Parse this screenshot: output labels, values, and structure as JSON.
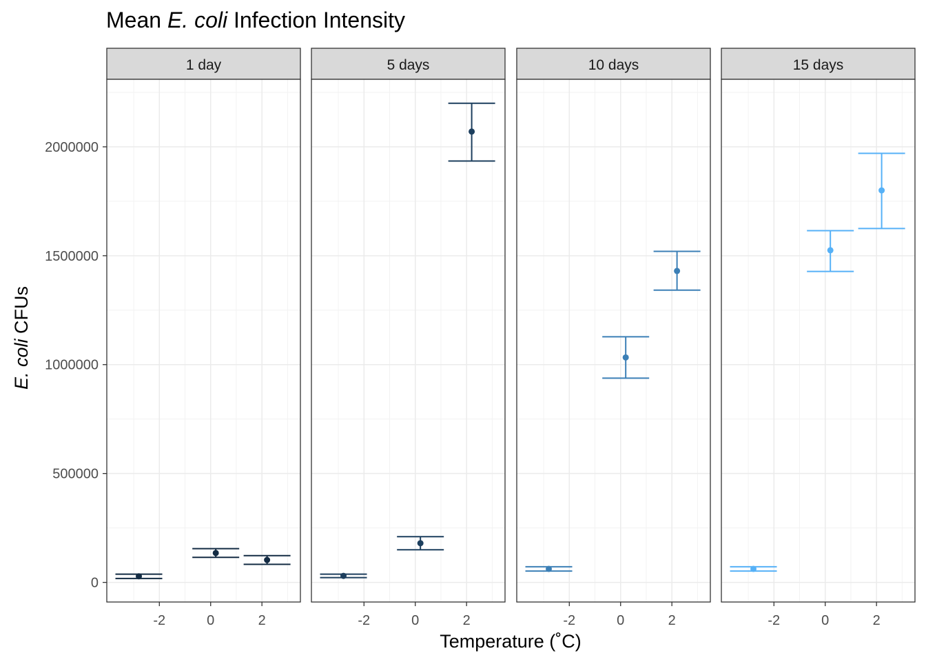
{
  "chart_data": {
    "type": "errorbar",
    "title": {
      "prefix": "Mean ",
      "italic": "E. coli",
      "suffix": " Infection Intensity"
    },
    "xlabel": "Temperature (˚C)",
    "ylabel": {
      "italic": "E. coli",
      "suffix": " CFUs"
    },
    "x_ticks": [
      -2,
      0,
      2
    ],
    "x_tick_labels": [
      "-2",
      "0",
      "2"
    ],
    "y_ticks": [
      0,
      500000,
      1000000,
      1500000,
      2000000
    ],
    "y_tick_labels": [
      "0",
      "500000",
      "1000000",
      "1500000",
      "2000000"
    ],
    "xlim": [
      -4.05,
      3.5
    ],
    "ylim": [
      -90000,
      2310000
    ],
    "grid": true,
    "facets": [
      {
        "label": "1 day",
        "color": "#132b43",
        "points": [
          {
            "x": -2.8,
            "y": 28000,
            "ymin": 18000,
            "ymax": 38000
          },
          {
            "x": 0.2,
            "y": 135000,
            "ymin": 115000,
            "ymax": 155000
          },
          {
            "x": 2.2,
            "y": 103000,
            "ymin": 83000,
            "ymax": 123000
          }
        ]
      },
      {
        "label": "5 days",
        "color": "#1d3f5e",
        "points": [
          {
            "x": -2.8,
            "y": 30000,
            "ymin": 22000,
            "ymax": 38000
          },
          {
            "x": 0.2,
            "y": 180000,
            "ymin": 150000,
            "ymax": 210000
          },
          {
            "x": 2.2,
            "y": 2070000,
            "ymin": 1935000,
            "ymax": 2200000
          }
        ]
      },
      {
        "label": "10 days",
        "color": "#3b7fb6",
        "points": [
          {
            "x": -2.8,
            "y": 62000,
            "ymin": 52000,
            "ymax": 72000
          },
          {
            "x": 0.2,
            "y": 1033000,
            "ymin": 938000,
            "ymax": 1128000
          },
          {
            "x": 2.2,
            "y": 1430000,
            "ymin": 1342000,
            "ymax": 1520000
          }
        ]
      },
      {
        "label": "15 days",
        "color": "#56b1f7",
        "points": [
          {
            "x": -2.8,
            "y": 62000,
            "ymin": 52000,
            "ymax": 72000
          },
          {
            "x": 0.2,
            "y": 1525000,
            "ymin": 1428000,
            "ymax": 1615000
          },
          {
            "x": 2.2,
            "y": 1800000,
            "ymin": 1625000,
            "ymax": 1970000
          }
        ]
      }
    ]
  }
}
